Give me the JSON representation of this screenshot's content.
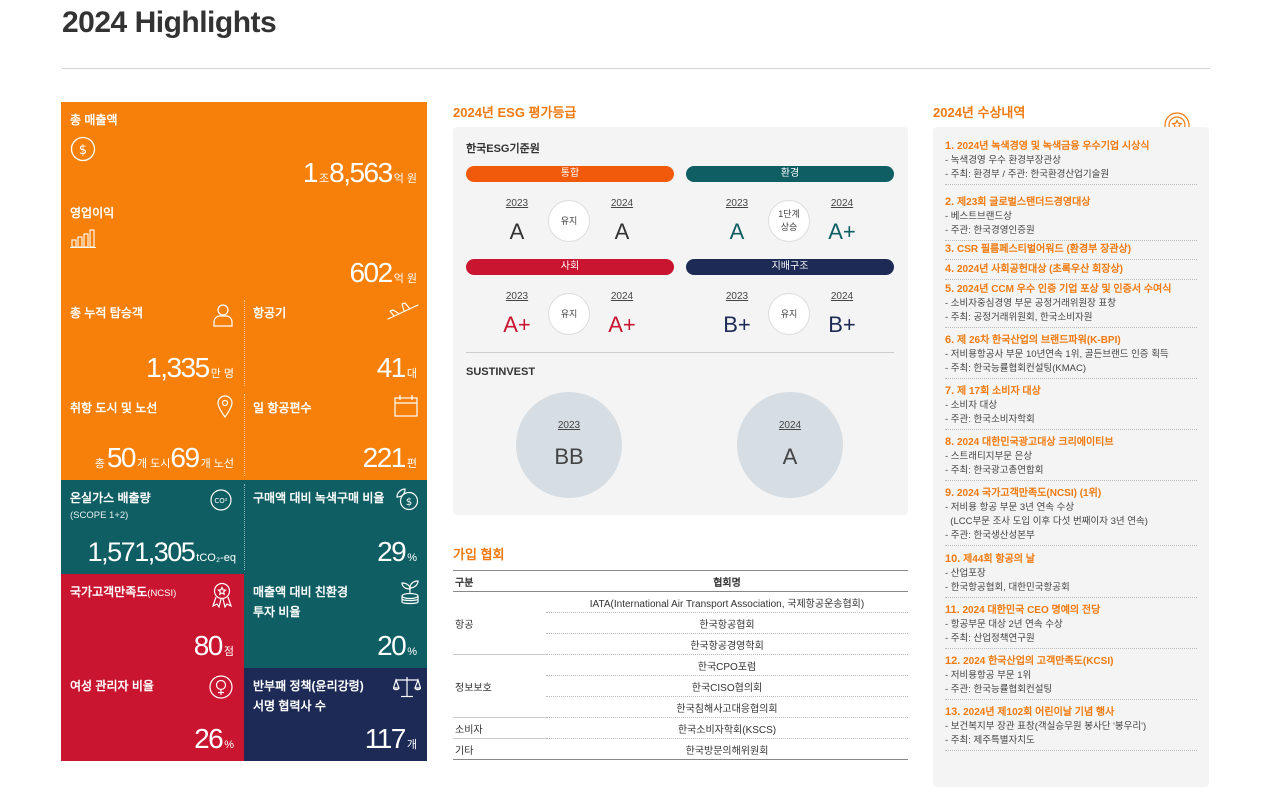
{
  "page_title": "2024 Highlights",
  "tiles": {
    "revenue": {
      "label": "총 매출액",
      "v1": "1",
      "u1": "조",
      "v2": "8,563",
      "u2": "억 원"
    },
    "op_profit": {
      "label": "영업이익",
      "value": "602",
      "unit": "억 원"
    },
    "passengers": {
      "label": "총 누적 탑승객",
      "value": "1,335",
      "unit": "만 명"
    },
    "aircraft": {
      "label": "항공기",
      "value": "41",
      "unit": "대"
    },
    "routes": {
      "label": "취항 도시 및 노선",
      "pre": "총",
      "v1": "50",
      "u1": "개 도시",
      "v2": "69",
      "u2": "개 노선"
    },
    "daily_flights": {
      "label": "일 항공편수",
      "value": "221",
      "unit": "편"
    },
    "ghg": {
      "label": "온실가스 배출량",
      "sub": "(SCOPE 1+2)",
      "value": "1,571,305",
      "unit": "tCO₂-eq"
    },
    "green_purchase": {
      "label": "구매액 대비 녹색구매 비율",
      "value": "29",
      "unit": "%"
    },
    "ncsi": {
      "label": "국가고객만족도",
      "label_small": "(NCSI)",
      "value": "80",
      "unit": "점"
    },
    "eco_invest": {
      "label_line1": "매출액 대비 친환경",
      "label_line2": "투자 비율",
      "value": "20",
      "unit": "%"
    },
    "female_mgr": {
      "label": "여성 관리자 비율",
      "value": "26",
      "unit": "%"
    },
    "anti_corruption": {
      "label_line1": "반부패 정책(윤리강령)",
      "label_line2": "서명 협력사 수",
      "value": "117",
      "unit": "개"
    }
  },
  "esg": {
    "title": "2024년 ESG 평가등급",
    "org1": "한국ESG기준원",
    "categories": [
      {
        "name": "통합",
        "color": "#f05a0a",
        "y1": "2023",
        "g1": "A",
        "change": "유지",
        "y2": "2024",
        "g2": "A",
        "grade_color": "#333333"
      },
      {
        "name": "환경",
        "color": "#0f5e63",
        "y1": "2023",
        "g1": "A",
        "change": "1단계 상승",
        "y2": "2024",
        "g2": "A+",
        "grade_color": "#0f5e63"
      },
      {
        "name": "사회",
        "color": "#c9152f",
        "y1": "2023",
        "g1": "A+",
        "change": "유지",
        "y2": "2024",
        "g2": "A+",
        "grade_color": "#c9152f"
      },
      {
        "name": "지배구조",
        "color": "#1c2a55",
        "y1": "2023",
        "g1": "B+",
        "change": "유지",
        "y2": "2024",
        "g2": "B+",
        "grade_color": "#1c2a55"
      }
    ],
    "org2": "SUSTINVEST",
    "sustinvest": [
      {
        "year": "2023",
        "grade": "BB"
      },
      {
        "year": "2024",
        "grade": "A"
      }
    ]
  },
  "associations": {
    "title": "가입 협회",
    "headers": [
      "구분",
      "협회명"
    ],
    "groups": [
      {
        "category": "항공",
        "names": [
          "IATA(International Air Transport Association, 국제항공운송협회)",
          "한국항공협회",
          "한국항공경영학회"
        ]
      },
      {
        "category": "정보보호",
        "names": [
          "한국CPO포럼",
          "한국CISO협의회",
          "한국침해사고대응협의회"
        ]
      },
      {
        "category": "소비자",
        "names": [
          "한국소비자학회(KSCS)"
        ]
      },
      {
        "category": "기타",
        "names": [
          "한국방문의해위원회"
        ]
      }
    ]
  },
  "awards": {
    "title": "2024년 수상내역",
    "items": [
      {
        "num": "1.",
        "title": "2024년 녹색경영 및 녹색금융 우수기업 시상식",
        "details": [
          "- 녹색경영 우수 환경부장관상",
          "- 주최: 환경부 / 주관: 한국환경산업기술원"
        ]
      },
      {
        "num": "2.",
        "title": "제23회 글로벌스탠더드경영대상",
        "details": [
          "- 베스트브랜드상",
          "- 주관: 한국경영인증원"
        ]
      },
      {
        "num": "3.",
        "title": "CSR 필름페스티벌어워드 (환경부 장관상)",
        "details": []
      },
      {
        "num": "4.",
        "title": "2024년 사회공헌대상 (초록우산 회장상)",
        "details": []
      },
      {
        "num": "5.",
        "title": " 2024년 CCM 우수 인증 기업 포상 및 인증서 수여식",
        "details": [
          "- 소비자중심경영 부문 공정거래위원장 표창",
          "- 주최: 공정거래위원회, 한국소비자원"
        ]
      },
      {
        "num": "6.",
        "title": "제 26차 한국산업의 브랜드파워(K-BPI)",
        "details": [
          "- 저비용항공사 부문 10년연속 1위, 골든브랜드 인증 획득",
          "- 주최: 한국능률협회컨설팅(KMAC)"
        ]
      },
      {
        "num": "7.",
        "title": "제 17회 소비자 대상",
        "details": [
          "- 소비자 대상",
          "- 주관: 한국소비자학회"
        ]
      },
      {
        "num": "8.",
        "title": "2024 대한민국광고대상 크리에이티브",
        "details": [
          "- 스트래티지부문 은상",
          "- 주최: 한국광고총연합회"
        ]
      },
      {
        "num": "9.",
        "title": "2024 국가고객만족도(NCSI) (1위)",
        "details": [
          "- 저비용 항공 부문 3년 연속 수상",
          "  (LCC부문 조사 도입 이후 다섯 번째이자 3년 연속)",
          "- 주관: 한국생산성본부"
        ]
      },
      {
        "num": "10.",
        "title": "제44회 항공의 날",
        "details": [
          "- 산업포장",
          "- 한국항공협회, 대한민국항공회"
        ]
      },
      {
        "num": "11.",
        "title": "2024 대한민국 CEO 명예의 전당",
        "details": [
          "- 항공부문 대상 2년 연속 수상",
          "- 주최: 산업정책연구원"
        ]
      },
      {
        "num": "12.",
        "title": "2024 한국산업의 고객만족도(KCSI)",
        "details": [
          "- 저비용항공 부문 1위",
          "- 주관: 한국능률협회컨설팅"
        ]
      },
      {
        "num": "13.",
        "title": "2024년 제102회 어린이날 기념 행사",
        "details": [
          "- 보건복지부 장관 표창(객실승무원 봉사단 '봉우리')",
          "- 주최: 제주특별자치도"
        ]
      }
    ]
  }
}
